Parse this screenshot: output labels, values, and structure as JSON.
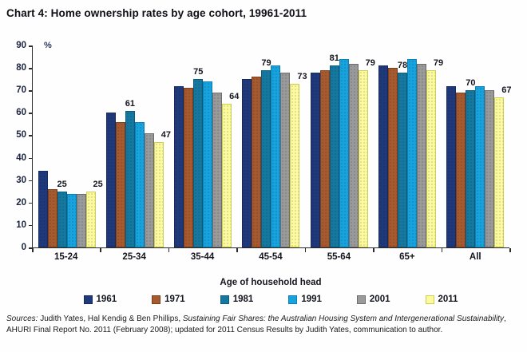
{
  "page": {
    "title": "Chart 4: Home ownership rates by age cohort, 19961-2011"
  },
  "chart_data": {
    "type": "bar",
    "title": "Chart 4: Home ownership rates by age cohort, 19961-2011",
    "unit_label": "%",
    "xlabel": "Age of household head",
    "ylabel": "",
    "ylim": [
      0,
      90
    ],
    "yticks": [
      90,
      80,
      70,
      60,
      50,
      40,
      30,
      20,
      10,
      0
    ],
    "grid": false,
    "legend_position": "bottom",
    "categories": [
      "15-24",
      "25-34",
      "35-44",
      "45-54",
      "55-64",
      "65+",
      "All"
    ],
    "series": [
      {
        "name": "1961",
        "color": "#20397b",
        "border": "#152a5e",
        "labeled": false,
        "values": [
          34,
          60,
          72,
          75,
          78,
          81,
          72
        ]
      },
      {
        "name": "1971",
        "color": "#a65a2d",
        "border": "#7c3f1d",
        "labeled": false,
        "values": [
          26,
          56,
          71,
          76,
          79,
          80,
          69
        ]
      },
      {
        "name": "1981",
        "color": "#15799f",
        "border": "#0c5a7c",
        "labeled": true,
        "values": [
          25,
          61,
          75,
          79,
          81,
          78,
          70
        ]
      },
      {
        "name": "1991",
        "color": "#17a3de",
        "border": "#0d7fb5",
        "labeled": false,
        "values": [
          24,
          56,
          74,
          81,
          84,
          84,
          72
        ]
      },
      {
        "name": "2001",
        "color": "#9a9a9a",
        "border": "#6d6d6d",
        "labeled": false,
        "values": [
          24,
          51,
          69,
          78,
          82,
          82,
          70
        ]
      },
      {
        "name": "2011",
        "color": "#fbfb9d",
        "border": "#cdcd55",
        "labeled": true,
        "values": [
          25,
          47,
          64,
          73,
          79,
          79,
          67
        ]
      }
    ]
  },
  "source": {
    "parts": [
      {
        "text": "Sources:",
        "italic": true
      },
      {
        "text": " Judith Yates, Hal Kendig & Ben Phillips, ",
        "italic": false
      },
      {
        "text": "Sustaining Fair Shares: the Australian Housing System and Intergenerational Sustainability",
        "italic": true
      },
      {
        "text": ", AHURI Final Report No. 2011 (February 2008); updated for 2011 Census Results by Judith Yates, communication to author.",
        "italic": false
      }
    ]
  }
}
